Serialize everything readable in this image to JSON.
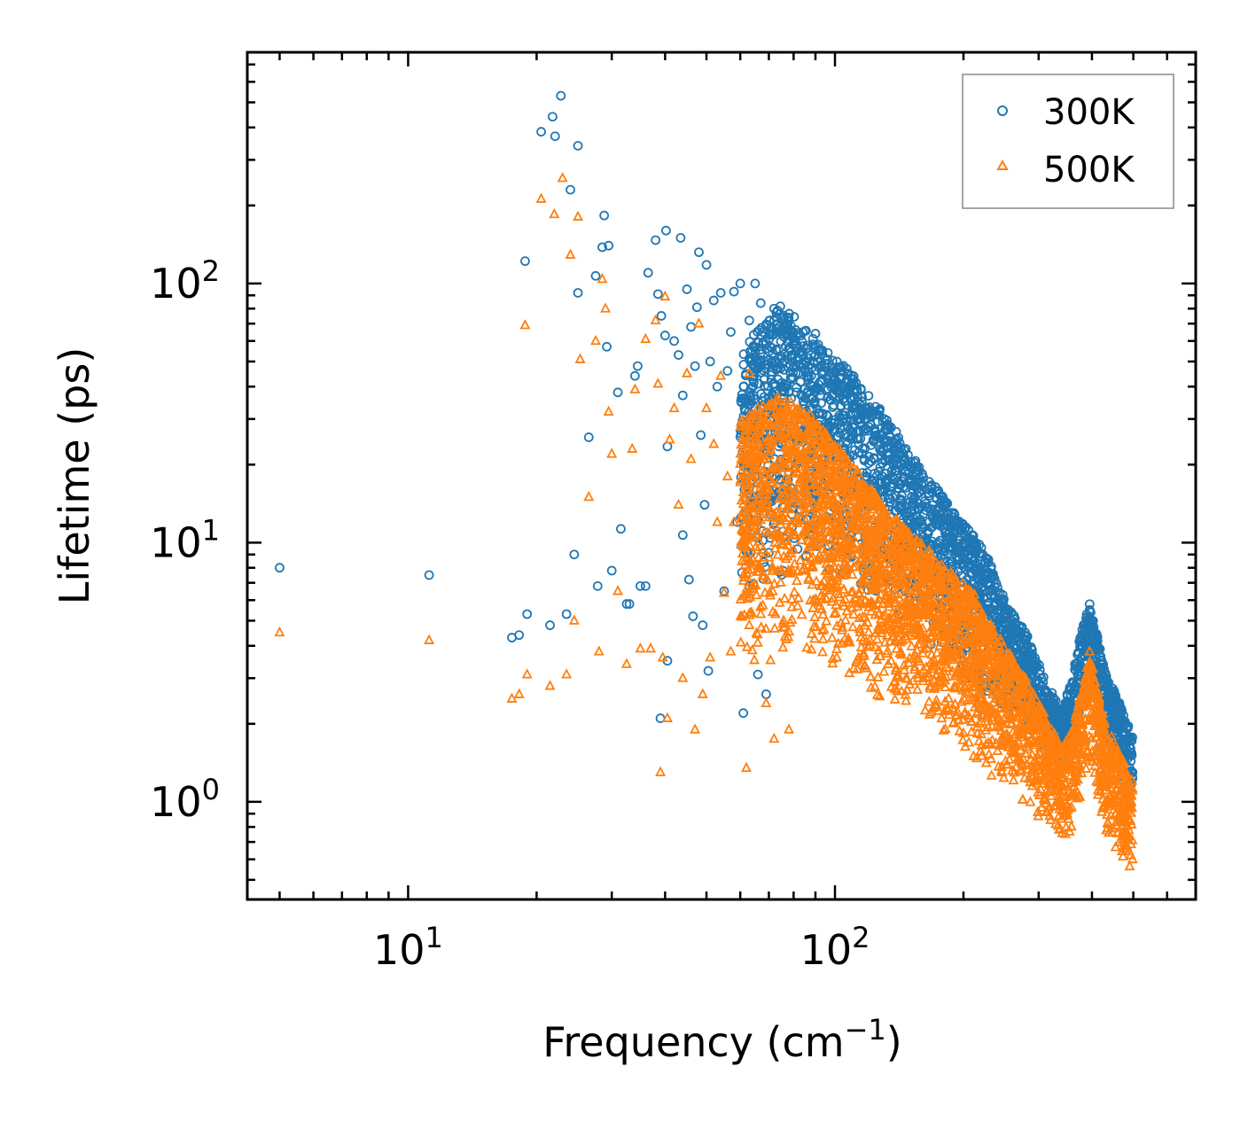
{
  "chart_data": {
    "type": "scatter",
    "title": "",
    "xlabel": "Frequency (cm",
    "xlabel_sup": "−1",
    "xlabel_end": ")",
    "ylabel": "Lifetime (ps)",
    "xscale": "log",
    "yscale": "log",
    "xlim": [
      4.2,
      700
    ],
    "ylim": [
      0.42,
      780
    ],
    "x_ticks": [
      {
        "base": "10",
        "exp": "1",
        "value": 10
      },
      {
        "base": "10",
        "exp": "2",
        "value": 100
      }
    ],
    "y_ticks": [
      {
        "base": "10",
        "exp": "0",
        "value": 1
      },
      {
        "base": "10",
        "exp": "1",
        "value": 10
      },
      {
        "base": "10",
        "exp": "2",
        "value": 100
      }
    ],
    "legend": {
      "position": "top-right",
      "entries": [
        "300K",
        "500K"
      ]
    },
    "colors": {
      "300K": "#1f77b4",
      "500K": "#ff7f0e"
    },
    "series": [
      {
        "name": "300K",
        "marker": "circle",
        "points": [
          [
            5,
            8.0
          ],
          [
            11.2,
            7.5
          ],
          [
            17.5,
            4.3
          ],
          [
            18.2,
            4.4
          ],
          [
            18.8,
            122
          ],
          [
            19,
            5.3
          ],
          [
            20.5,
            385
          ],
          [
            21.5,
            4.8
          ],
          [
            21.8,
            440
          ],
          [
            22.1,
            370
          ],
          [
            22.8,
            530
          ],
          [
            23.5,
            5.3
          ],
          [
            24,
            230
          ],
          [
            24.5,
            9.0
          ],
          [
            25,
            92
          ],
          [
            25,
            340
          ],
          [
            26.5,
            25.5
          ],
          [
            27.5,
            107
          ],
          [
            27.8,
            6.8
          ],
          [
            28.5,
            138
          ],
          [
            28.8,
            183
          ],
          [
            29.5,
            140
          ],
          [
            29.2,
            57
          ],
          [
            30,
            7.8
          ],
          [
            31,
            38
          ],
          [
            31.5,
            11.3
          ],
          [
            32.5,
            5.8
          ],
          [
            33,
            5.8
          ],
          [
            34,
            44
          ],
          [
            34.5,
            48
          ],
          [
            35,
            6.8
          ],
          [
            36,
            6.8
          ],
          [
            36.5,
            110
          ],
          [
            38,
            147
          ],
          [
            38.5,
            91
          ],
          [
            39.2,
            75
          ],
          [
            40,
            63
          ],
          [
            40.2,
            160
          ],
          [
            40.5,
            23.5
          ],
          [
            40.5,
            3.5
          ],
          [
            39,
            2.1
          ],
          [
            42,
            60
          ],
          [
            43,
            53
          ],
          [
            43.5,
            150
          ],
          [
            44,
            37
          ],
          [
            44,
            10.7
          ],
          [
            45,
            95
          ],
          [
            45.5,
            7.2
          ],
          [
            46,
            68
          ],
          [
            46.5,
            5.2
          ],
          [
            47,
            48
          ],
          [
            47.5,
            81
          ],
          [
            48,
            132
          ],
          [
            48.5,
            26
          ],
          [
            49,
            4.8
          ],
          [
            49.5,
            14
          ],
          [
            50,
            118
          ],
          [
            50.5,
            3.2
          ],
          [
            51,
            50
          ],
          [
            52,
            86
          ],
          [
            53,
            40
          ],
          [
            54,
            92
          ],
          [
            55,
            6.5
          ],
          [
            56,
            46
          ],
          [
            57,
            65
          ],
          [
            58,
            93
          ],
          [
            59,
            12
          ],
          [
            60,
            100
          ],
          [
            61,
            2.2
          ],
          [
            62,
            35
          ],
          [
            63,
            72
          ],
          [
            65,
            100
          ],
          [
            66,
            3.1
          ],
          [
            67,
            84
          ],
          [
            69,
            2.6
          ],
          [
            70,
            36
          ],
          [
            72,
            80
          ],
          [
            74,
            65
          ],
          [
            76,
            74
          ],
          [
            78,
            56
          ],
          [
            80,
            60
          ],
          [
            82,
            45
          ],
          [
            85,
            50
          ],
          [
            88,
            44
          ],
          [
            90,
            64
          ],
          [
            93,
            48
          ],
          [
            96,
            43
          ],
          [
            100,
            40
          ],
          [
            105,
            36
          ],
          [
            110,
            34
          ],
          [
            115,
            30
          ],
          [
            120,
            28
          ],
          [
            125,
            26
          ],
          [
            130,
            23
          ],
          [
            135,
            21
          ],
          [
            140,
            20
          ],
          [
            145,
            18
          ],
          [
            150,
            17
          ],
          [
            160,
            16
          ],
          [
            170,
            14
          ],
          [
            180,
            12.5
          ],
          [
            190,
            11
          ],
          [
            200,
            10
          ],
          [
            210,
            8.5
          ],
          [
            220,
            7.5
          ],
          [
            230,
            6.5
          ],
          [
            245,
            5.5
          ],
          [
            260,
            4.5
          ],
          [
            275,
            3.8
          ],
          [
            290,
            3.1
          ],
          [
            305,
            2.5
          ],
          [
            320,
            2.3
          ],
          [
            335,
            2.2
          ],
          [
            350,
            2.6
          ],
          [
            365,
            3.4
          ],
          [
            380,
            4.2
          ],
          [
            395,
            5.5
          ],
          [
            410,
            4.4
          ],
          [
            425,
            3.4
          ],
          [
            440,
            2.7
          ],
          [
            455,
            2.3
          ],
          [
            470,
            2.0
          ],
          [
            485,
            1.7
          ],
          [
            498,
            1.3
          ]
        ]
      },
      {
        "name": "500K",
        "marker": "triangle",
        "points": [
          [
            5,
            4.5
          ],
          [
            11.2,
            4.2
          ],
          [
            17.5,
            2.5
          ],
          [
            18.2,
            2.6
          ],
          [
            18.8,
            69
          ],
          [
            19,
            3.1
          ],
          [
            20.5,
            212
          ],
          [
            21.5,
            2.8
          ],
          [
            22,
            185
          ],
          [
            23,
            255
          ],
          [
            23.5,
            3.1
          ],
          [
            24,
            129
          ],
          [
            24.5,
            5.0
          ],
          [
            25,
            181
          ],
          [
            25.3,
            51
          ],
          [
            26.5,
            15
          ],
          [
            27.5,
            60
          ],
          [
            28,
            3.8
          ],
          [
            28.5,
            104
          ],
          [
            29,
            80
          ],
          [
            29.5,
            32
          ],
          [
            30,
            22
          ],
          [
            31,
            6.5
          ],
          [
            32.5,
            3.4
          ],
          [
            33.5,
            23
          ],
          [
            34,
            39
          ],
          [
            35,
            3.9
          ],
          [
            36,
            61
          ],
          [
            37,
            3.9
          ],
          [
            38,
            72
          ],
          [
            38.5,
            41
          ],
          [
            39,
            1.3
          ],
          [
            39.5,
            3.6
          ],
          [
            40,
            89
          ],
          [
            40.5,
            2.1
          ],
          [
            41,
            25
          ],
          [
            42,
            33
          ],
          [
            43,
            14
          ],
          [
            44,
            3.0
          ],
          [
            45,
            45
          ],
          [
            46,
            21
          ],
          [
            47,
            1.9
          ],
          [
            48,
            70
          ],
          [
            49,
            2.6
          ],
          [
            50,
            33
          ],
          [
            51,
            3.6
          ],
          [
            52,
            24
          ],
          [
            53,
            12
          ],
          [
            54,
            44
          ],
          [
            55,
            6.4
          ],
          [
            56,
            18
          ],
          [
            57,
            3.8
          ],
          [
            58,
            12
          ],
          [
            60,
            28
          ],
          [
            61,
            6.2
          ],
          [
            62,
            1.35
          ],
          [
            63,
            45
          ],
          [
            65,
            20
          ],
          [
            67,
            5.3
          ],
          [
            69,
            2.4
          ],
          [
            70,
            16
          ],
          [
            72,
            1.75
          ],
          [
            74,
            13
          ],
          [
            76,
            25
          ],
          [
            78,
            1.9
          ],
          [
            80,
            28
          ],
          [
            82,
            14
          ],
          [
            85,
            16
          ],
          [
            88,
            10
          ],
          [
            90,
            24
          ],
          [
            93,
            12
          ],
          [
            96,
            11
          ],
          [
            100,
            12
          ],
          [
            105,
            10
          ],
          [
            110,
            9
          ],
          [
            115,
            8.5
          ],
          [
            120,
            9.5
          ],
          [
            125,
            8.2
          ],
          [
            130,
            7.5
          ],
          [
            135,
            7
          ],
          [
            140,
            6.3
          ],
          [
            150,
            6
          ],
          [
            160,
            5.5
          ],
          [
            170,
            4.8
          ],
          [
            180,
            4.2
          ],
          [
            190,
            3.8
          ],
          [
            200,
            3.3
          ],
          [
            210,
            2.9
          ],
          [
            220,
            2.6
          ],
          [
            230,
            2.3
          ],
          [
            245,
            2.0
          ],
          [
            260,
            1.7
          ],
          [
            275,
            1.4
          ],
          [
            290,
            1.15
          ],
          [
            305,
            0.95
          ],
          [
            320,
            0.85
          ],
          [
            335,
            0.78
          ],
          [
            350,
            0.9
          ],
          [
            365,
            1.3
          ],
          [
            380,
            2.0
          ],
          [
            395,
            3.8
          ],
          [
            410,
            2.0
          ],
          [
            425,
            1.3
          ],
          [
            440,
            1.05
          ],
          [
            455,
            0.9
          ],
          [
            470,
            0.8
          ],
          [
            485,
            0.72
          ],
          [
            498,
            0.6
          ]
        ],
        "dense_band": true
      }
    ],
    "dense_bands": {
      "300K": {
        "freq": [
          60,
          75,
          90,
          110,
          130,
          150,
          170,
          190,
          210,
          230,
          250,
          280,
          310,
          340,
          360,
          380,
          395,
          410,
          430,
          460,
          498
        ],
        "upper": [
          55,
          85,
          60,
          45,
          32,
          22,
          17,
          13,
          11,
          8.5,
          6.0,
          4.5,
          3.0,
          2.2,
          3.0,
          4.8,
          5.8,
          4.5,
          3.2,
          2.5,
          1.8
        ],
        "lower": [
          6,
          7,
          8,
          6.5,
          5.5,
          4.5,
          3.8,
          3.3,
          2.8,
          2.5,
          2.2,
          1.8,
          1.5,
          1.3,
          1.5,
          2.2,
          3.0,
          2.2,
          1.6,
          1.3,
          1.0
        ]
      },
      "500K": {
        "freq": [
          60,
          75,
          90,
          110,
          130,
          150,
          170,
          190,
          210,
          230,
          250,
          280,
          310,
          340,
          360,
          380,
          395,
          410,
          430,
          460,
          498
        ],
        "upper": [
          30,
          38,
          30,
          20,
          14,
          11,
          9,
          7.5,
          6.5,
          5.0,
          4.0,
          3.0,
          2.2,
          1.6,
          1.9,
          2.8,
          3.8,
          2.8,
          2.0,
          1.6,
          1.2
        ],
        "lower": [
          3,
          3.5,
          3.2,
          2.8,
          2.4,
          2.1,
          1.8,
          1.6,
          1.4,
          1.25,
          1.1,
          0.95,
          0.82,
          0.72,
          0.78,
          1.0,
          1.4,
          0.95,
          0.75,
          0.62,
          0.52
        ]
      }
    }
  }
}
